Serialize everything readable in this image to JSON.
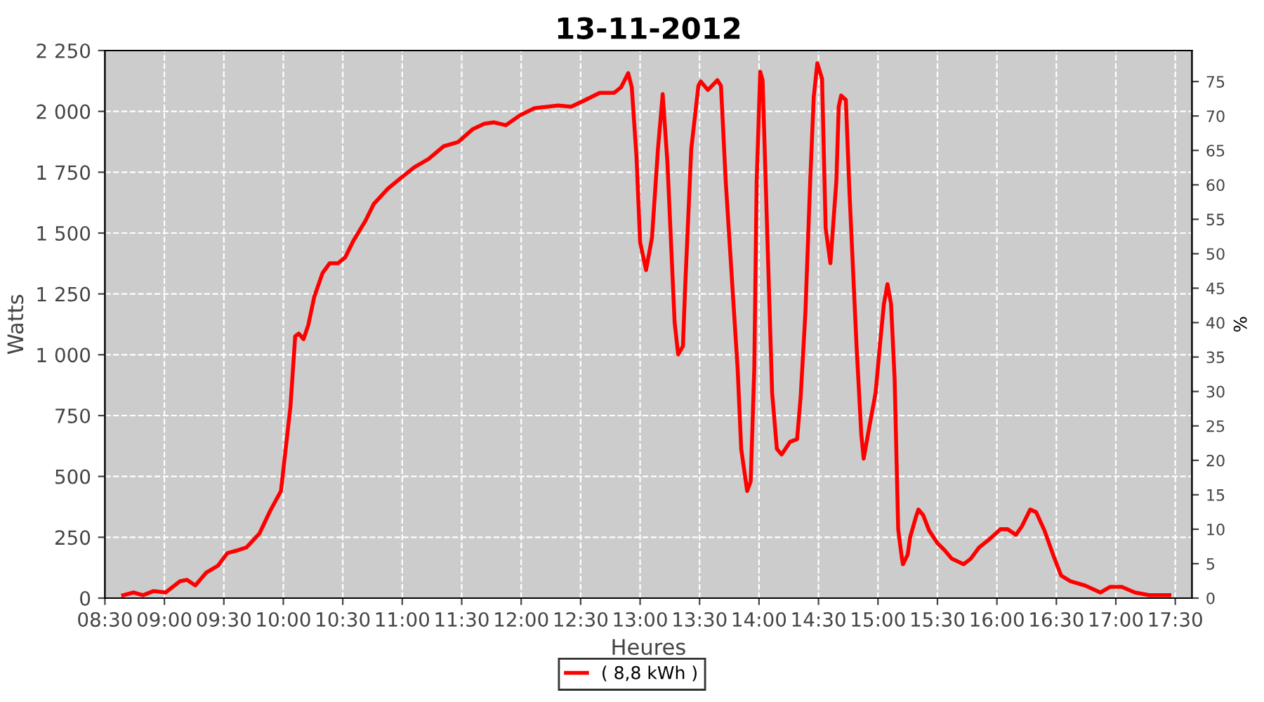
{
  "chart_data": {
    "type": "line",
    "title": "13-11-2012",
    "xlabel": "Heures",
    "ylabel": "Watts",
    "y2label": "%",
    "xlim": [
      8.5,
      17.64
    ],
    "xticks": [
      {
        "value": 8.5,
        "label": "08:30"
      },
      {
        "value": 9,
        "label": "09:00"
      },
      {
        "value": 9.5,
        "label": "09:30"
      },
      {
        "value": 10,
        "label": "10:00"
      },
      {
        "value": 10.5,
        "label": "10:30"
      },
      {
        "value": 11,
        "label": "11:00"
      },
      {
        "value": 11.5,
        "label": "11:30"
      },
      {
        "value": 12,
        "label": "12:00"
      },
      {
        "value": 12.5,
        "label": "12:30"
      },
      {
        "value": 13,
        "label": "13:00"
      },
      {
        "value": 13.5,
        "label": "13:30"
      },
      {
        "value": 14,
        "label": "14:00"
      },
      {
        "value": 14.5,
        "label": "14:30"
      },
      {
        "value": 15,
        "label": "15:00"
      },
      {
        "value": 15.5,
        "label": "15:30"
      },
      {
        "value": 16,
        "label": "16:00"
      },
      {
        "value": 16.5,
        "label": "16:30"
      },
      {
        "value": 17,
        "label": "17:00"
      },
      {
        "value": 17.5,
        "label": "17:30"
      }
    ],
    "ylim": [
      0,
      2250
    ],
    "yticks": [
      0,
      250,
      500,
      750,
      {
        "value": 1000,
        "label": "1 000"
      },
      {
        "value": 1250,
        "label": "1 250"
      },
      {
        "value": 1500,
        "label": "1 500"
      },
      {
        "value": 1750,
        "label": "1 750"
      },
      {
        "value": 2000,
        "label": "2 000"
      },
      {
        "value": 2250,
        "label": "2 250"
      }
    ],
    "y2lim": [
      0,
      79.5
    ],
    "y2ticks": [
      0,
      5,
      10,
      15,
      20,
      25,
      30,
      35,
      40,
      45,
      50,
      55,
      60,
      65,
      70,
      75
    ],
    "grid": true,
    "legend": "bottom",
    "marker": "none",
    "line_style": "solid",
    "series": [
      {
        "name": "( 8,8 kWh )",
        "color": "#ff0000",
        "x": [
          8.654,
          8.74,
          8.82,
          8.91,
          9.01,
          9.13,
          9.19,
          9.26,
          9.35,
          9.45,
          9.53,
          9.62,
          9.69,
          9.8,
          9.89,
          9.98,
          10.02,
          10.06,
          10.1,
          10.13,
          10.17,
          10.21,
          10.26,
          10.33,
          10.39,
          10.46,
          10.52,
          10.59,
          10.69,
          10.76,
          10.88,
          11.01,
          11.1,
          11.22,
          11.35,
          11.47,
          11.59,
          11.69,
          11.77,
          11.87,
          11.99,
          12.11,
          12.31,
          12.42,
          12.54,
          12.66,
          12.78,
          12.84,
          12.9,
          12.93,
          12.97,
          13.0,
          13.05,
          13.1,
          13.15,
          13.19,
          13.23,
          13.29,
          13.32,
          13.36,
          13.38,
          13.43,
          13.49,
          13.51,
          13.57,
          13.65,
          13.68,
          13.72,
          13.78,
          13.82,
          13.85,
          13.9,
          13.93,
          13.96,
          13.98,
          14.01,
          14.03,
          14.08,
          14.11,
          14.15,
          14.19,
          14.26,
          14.32,
          14.35,
          14.39,
          14.43,
          14.46,
          14.49,
          14.53,
          14.56,
          14.6,
          14.65,
          14.67,
          14.69,
          14.73,
          14.76,
          14.82,
          14.86,
          14.88,
          14.93,
          14.98,
          15.02,
          15.05,
          15.08,
          15.11,
          15.14,
          15.17,
          15.2,
          15.21,
          15.25,
          15.27,
          15.32,
          15.34,
          15.38,
          15.43,
          15.5,
          15.56,
          15.62,
          15.72,
          15.78,
          15.85,
          15.94,
          16.03,
          16.09,
          16.16,
          16.21,
          16.28,
          16.33,
          16.4,
          16.48,
          16.54,
          16.62,
          16.74,
          16.87,
          16.95,
          17.05,
          17.16,
          17.28,
          17.45
        ],
        "values": [
          12,
          23,
          12,
          29,
          23,
          69,
          75,
          52,
          104,
          133,
          185,
          197,
          208,
          266,
          359,
          440,
          613,
          787,
          1076,
          1087,
          1064,
          1122,
          1238,
          1336,
          1376,
          1376,
          1400,
          1469,
          1550,
          1619,
          1683,
          1735,
          1770,
          1804,
          1857,
          1874,
          1926,
          1949,
          1955,
          1943,
          1984,
          2013,
          2024,
          2019,
          2047,
          2076,
          2076,
          2099,
          2157,
          2099,
          1810,
          1463,
          1348,
          1481,
          1845,
          2071,
          1787,
          1134,
          1001,
          1035,
          1290,
          1845,
          2105,
          2123,
          2088,
          2128,
          2105,
          1712,
          1249,
          943,
          613,
          440,
          480,
          943,
          1712,
          2163,
          2128,
          1324,
          844,
          613,
          590,
          642,
          653,
          827,
          1174,
          1712,
          2059,
          2198,
          2134,
          1521,
          1376,
          1712,
          2019,
          2065,
          2047,
          1671,
          1035,
          671,
          573,
          711,
          844,
          1058,
          1209,
          1290,
          1209,
          902,
          283,
          168,
          139,
          179,
          249,
          335,
          364,
          341,
          278,
          226,
          197,
          162,
          139,
          162,
          208,
          243,
          283,
          283,
          260,
          295,
          364,
          353,
          278,
          168,
          93,
          69,
          52,
          23,
          46,
          46,
          23,
          12,
          12
        ]
      }
    ]
  }
}
